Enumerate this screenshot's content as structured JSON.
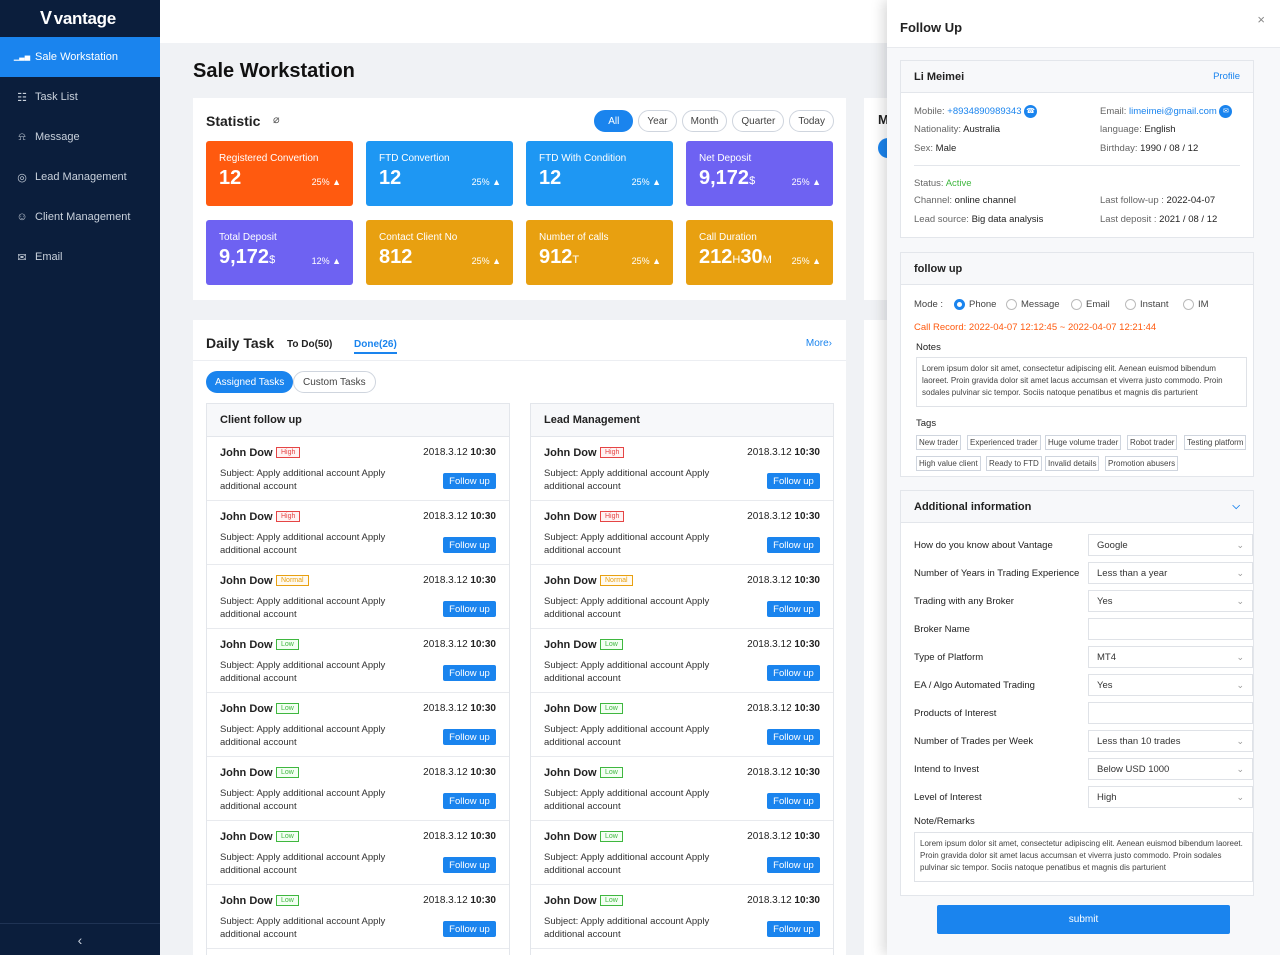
{
  "brand": {
    "name": "vantage"
  },
  "sidebar": {
    "items": [
      {
        "label": "Sale Workstation",
        "icon": "bar-chart-icon"
      },
      {
        "label": "Task List",
        "icon": "clipboard-icon"
      },
      {
        "label": "Message",
        "icon": "bell-icon"
      },
      {
        "label": "Lead Management",
        "icon": "target-icon"
      },
      {
        "label": "Client Management",
        "icon": "users-icon"
      },
      {
        "label": "Email",
        "icon": "mail-icon"
      }
    ],
    "collapse_glyph": "‹"
  },
  "page": {
    "title": "Sale Workstation"
  },
  "statistic": {
    "title": "Statistic",
    "filters": [
      "All",
      "Year",
      "Month",
      "Quarter",
      "Today"
    ],
    "cards": [
      {
        "label": "Registered Convertion",
        "value": "12",
        "unit": "",
        "pct": "25% ▲",
        "color": "#ff5a0f"
      },
      {
        "label": "FTD Convertion",
        "value": "12",
        "unit": "",
        "pct": "25% ▲",
        "color": "#1e97f3"
      },
      {
        "label": "FTD With Condition",
        "value": "12",
        "unit": "",
        "pct": "25% ▲",
        "color": "#1e97f3"
      },
      {
        "label": "Net Deposit",
        "value": "9,172",
        "unit": "$",
        "pct": "25% ▲",
        "color": "#6e62f2"
      },
      {
        "label": "Total Deposit",
        "value": "9,172",
        "unit": "$",
        "pct": "12% ▲",
        "color": "#6e62f2"
      },
      {
        "label": "Contact Client No",
        "value": "812",
        "unit": "",
        "pct": "25% ▲",
        "color": "#e8a010"
      },
      {
        "label": "Number of calls",
        "value": "912",
        "unit": "T",
        "pct": "25% ▲",
        "color": "#e8a010"
      },
      {
        "label": "Call Duration",
        "value": "212",
        "unit": "H",
        "value2": "30",
        "unit2": "M",
        "pct": "25% ▲",
        "color": "#e8a010"
      }
    ]
  },
  "daily": {
    "title": "Daily Task",
    "todo": "To Do(50)",
    "done": "Done(26)",
    "more": "More›",
    "assigned": "Assigned Tasks",
    "custom": "Custom Tasks",
    "columns": [
      {
        "title": "Client follow up",
        "rows": [
          {
            "name": "John Dow",
            "priority": "High",
            "date": "2018.3.12",
            "time": "10:30",
            "subject": "Subject: Apply additional account Apply additional account",
            "button": "Follow up"
          },
          {
            "name": "John Dow",
            "priority": "High",
            "date": "2018.3.12",
            "time": "10:30",
            "subject": "Subject: Apply additional account Apply additional account",
            "button": "Follow up"
          },
          {
            "name": "John Dow",
            "priority": "Normal",
            "date": "2018.3.12",
            "time": "10:30",
            "subject": "Subject: Apply additional account Apply additional account",
            "button": "Follow up"
          },
          {
            "name": "John Dow",
            "priority": "Low",
            "date": "2018.3.12",
            "time": "10:30",
            "subject": "Subject: Apply additional account Apply additional account",
            "button": "Follow up"
          },
          {
            "name": "John Dow",
            "priority": "Low",
            "date": "2018.3.12",
            "time": "10:30",
            "subject": "Subject: Apply additional account Apply additional account",
            "button": "Follow up"
          },
          {
            "name": "John Dow",
            "priority": "Low",
            "date": "2018.3.12",
            "time": "10:30",
            "subject": "Subject: Apply additional account Apply additional account",
            "button": "Follow up"
          },
          {
            "name": "John Dow",
            "priority": "Low",
            "date": "2018.3.12",
            "time": "10:30",
            "subject": "Subject: Apply additional account Apply additional account",
            "button": "Follow up"
          },
          {
            "name": "John Dow",
            "priority": "Low",
            "date": "2018.3.12",
            "time": "10:30",
            "subject": "Subject: Apply additional account Apply additional account",
            "button": "Follow up"
          }
        ]
      },
      {
        "title": "Lead Management",
        "rows": [
          {
            "name": "John Dow",
            "priority": "High",
            "date": "2018.3.12",
            "time": "10:30",
            "subject": "Subject: Apply additional account Apply additional account",
            "button": "Follow up"
          },
          {
            "name": "John Dow",
            "priority": "High",
            "date": "2018.3.12",
            "time": "10:30",
            "subject": "Subject: Apply additional account Apply additional account",
            "button": "Follow up"
          },
          {
            "name": "John Dow",
            "priority": "Normal",
            "date": "2018.3.12",
            "time": "10:30",
            "subject": "Subject: Apply additional account Apply additional account",
            "button": "Follow up"
          },
          {
            "name": "John Dow",
            "priority": "Low",
            "date": "2018.3.12",
            "time": "10:30",
            "subject": "Subject: Apply additional account Apply additional account",
            "button": "Follow up"
          },
          {
            "name": "John Dow",
            "priority": "Low",
            "date": "2018.3.12",
            "time": "10:30",
            "subject": "Subject: Apply additional account Apply additional account",
            "button": "Follow up"
          },
          {
            "name": "John Dow",
            "priority": "Low",
            "date": "2018.3.12",
            "time": "10:30",
            "subject": "Subject: Apply additional account Apply additional account",
            "button": "Follow up"
          },
          {
            "name": "John Dow",
            "priority": "Low",
            "date": "2018.3.12",
            "time": "10:30",
            "subject": "Subject: Apply additional account Apply additional account",
            "button": "Follow up"
          },
          {
            "name": "John Dow",
            "priority": "Low",
            "date": "2018.3.12",
            "time": "10:30",
            "subject": "Subject: Apply additional account Apply additional account",
            "button": "Follow up"
          }
        ]
      }
    ]
  },
  "right_partial": {
    "char": "M"
  },
  "drawer": {
    "title": "Follow Up",
    "close": "×",
    "profile": {
      "name": "Li Meimei",
      "profile_link": "Profile",
      "mobile_k": "Mobile:",
      "mobile_v": "+8934890989343",
      "email_k": "Email:",
      "email_v": "limeimei@gmail.com",
      "nationality_k": "Nationality:",
      "nationality_v": "Australia",
      "language_k": "language:",
      "language_v": "English",
      "sex_k": "Sex:",
      "sex_v": "Male",
      "birthday_k": "Birthday:",
      "birthday_v": "1990 / 08 / 12",
      "status_k": "Status:",
      "status_v": "Active",
      "channel_k": "Channel:",
      "channel_v": "online channel",
      "lastfollow_k": "Last follow-up :",
      "lastfollow_v": "2022-04-07",
      "leadsource_k": "Lead source:",
      "leadsource_v": "Big data analysis",
      "lastdeposit_k": "Last deposit :",
      "lastdeposit_v": "2021 / 08 / 12"
    },
    "followup": {
      "title": "follow up",
      "mode_label": "Mode :",
      "modes": [
        "Phone",
        "Message",
        "Email",
        "Instant",
        "IM"
      ],
      "selected_mode": "Phone",
      "call_record": "Call Record: 2022-04-07 12:12:45 ~ 2022-04-07 12:21:44",
      "notes_label": "Notes",
      "notes": "Lorem ipsum dolor sit amet, consectetur adipiscing elit. Aenean euismod bibendum laoreet. Proin gravida dolor sit amet lacus accumsan et viverra justo commodo. Proin sodales pulvinar sic tempor. Sociis natoque penatibus et magnis dis parturient",
      "tags_label": "Tags",
      "tags": [
        "New trader",
        "Experienced trader",
        "Huge volume trader",
        "Robot trader",
        "Testing platform",
        "High value client",
        "Ready to FTD",
        "Invalid details",
        "Promotion abusers"
      ]
    },
    "additional": {
      "title": "Additional information",
      "fields": [
        {
          "label": "How do you know about Vantage",
          "value": "Google",
          "type": "select"
        },
        {
          "label": "Number of Years in Trading Experience",
          "value": "Less than a year",
          "type": "select"
        },
        {
          "label": "Trading with any Broker",
          "value": "Yes",
          "type": "select"
        },
        {
          "label": "Broker Name",
          "value": "",
          "type": "input"
        },
        {
          "label": "Type of Platform",
          "value": "MT4",
          "type": "select"
        },
        {
          "label": "EA / Algo Automated Trading",
          "value": "Yes",
          "type": "select"
        },
        {
          "label": "Products of Interest",
          "value": "",
          "type": "input"
        },
        {
          "label": "Number of Trades per Week",
          "value": "Less than 10 trades",
          "type": "select"
        },
        {
          "label": "Intend to Invest",
          "value": "Below USD 1000",
          "type": "select"
        },
        {
          "label": "Level of Interest",
          "value": "High",
          "type": "select"
        }
      ],
      "remarks_label": "Note/Remarks",
      "remarks": "Lorem ipsum dolor sit amet, consectetur adipiscing elit. Aenean euismod bibendum laoreet. Proin gravida dolor sit amet lacus accumsan et viverra justo commodo. Proin sodales pulvinar sic tempor. Sociis natoque penatibus et magnis dis parturient"
    },
    "submit": "submit"
  }
}
